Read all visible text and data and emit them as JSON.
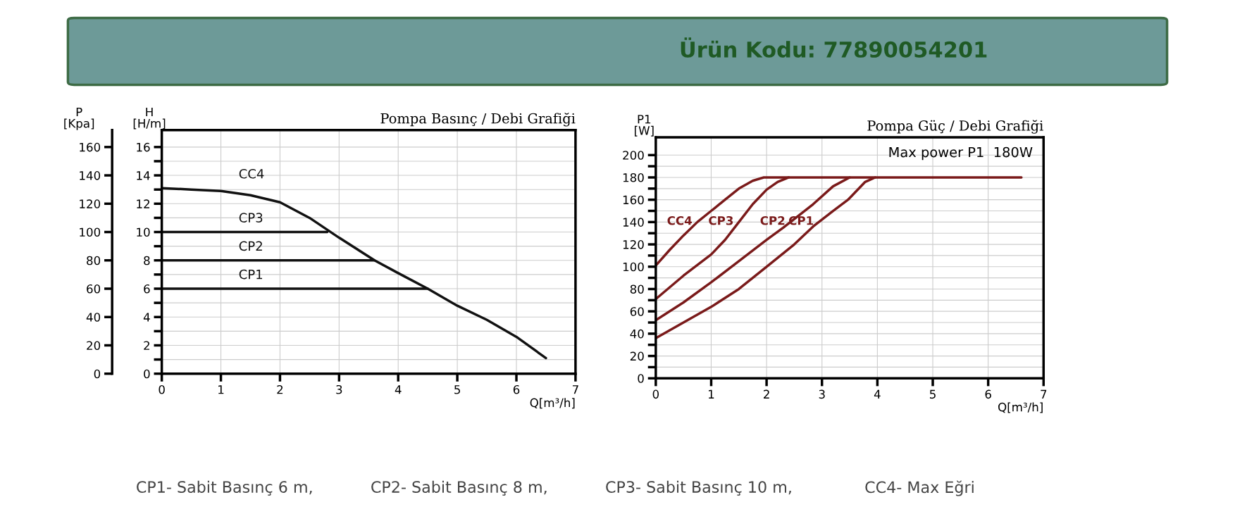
{
  "chart_data": [
    {
      "type": "line",
      "title": "Pompa Basınç / Debi Grafiği",
      "xlabel": "Q[m³/h]",
      "ylabel": "H\n[H/m]",
      "y2label": "P\n[Kpa]",
      "xlim": [
        0,
        7
      ],
      "xticks": [
        0,
        1,
        2,
        3,
        4,
        5,
        6,
        7
      ],
      "ylim": [
        0,
        17.2
      ],
      "yticks": [
        0,
        {
          "value": 1,
          "label": null
        },
        2,
        {
          "value": 3,
          "label": null
        },
        4,
        {
          "value": 5,
          "label": null
        },
        6,
        {
          "value": 7,
          "label": null
        },
        8,
        {
          "value": 9,
          "label": null
        },
        10,
        {
          "value": 11,
          "label": null
        },
        12,
        {
          "value": 13,
          "label": null
        },
        14,
        {
          "value": 15,
          "label": null
        },
        16
      ],
      "y2lim": [
        0,
        172
      ],
      "y2ticks": [
        0,
        20,
        40,
        60,
        80,
        100,
        120,
        140,
        160
      ],
      "grid": true,
      "marker": "none",
      "line_style": "solid",
      "series": [
        {
          "name": "CC4",
          "color": "#111111",
          "x": [
            0,
            0.5,
            1,
            1.5,
            2,
            2.5,
            3,
            3.6,
            4,
            4.5,
            5,
            5.5,
            6,
            6.5
          ],
          "values": [
            13.1,
            13.0,
            12.9,
            12.6,
            12.1,
            11.0,
            9.6,
            8.0,
            7.1,
            6.0,
            4.8,
            3.8,
            2.6,
            1.1
          ]
        },
        {
          "name": "CP3",
          "color": "#111111",
          "x": [
            0,
            2.8
          ],
          "values": [
            10,
            10
          ]
        },
        {
          "name": "CP2",
          "color": "#111111",
          "x": [
            0,
            3.6
          ],
          "values": [
            8,
            8
          ]
        },
        {
          "name": "CP1",
          "color": "#111111",
          "x": [
            0,
            4.5
          ],
          "values": [
            6,
            6
          ]
        }
      ]
    },
    {
      "type": "line",
      "title": "Pompa Güç / Debi Grafiği",
      "xlabel": "Q[m³/h]",
      "ylabel": "P1\n[W]",
      "xlim": [
        0,
        7
      ],
      "xticks": [
        0,
        1,
        2,
        3,
        4,
        5,
        6,
        7
      ],
      "ylim": [
        0,
        216
      ],
      "yticks": [
        0,
        {
          "value": 10,
          "label": null
        },
        20,
        {
          "value": 30,
          "label": null
        },
        40,
        {
          "value": 50,
          "label": null
        },
        60,
        {
          "value": 70,
          "label": null
        },
        80,
        {
          "value": 90,
          "label": null
        },
        100,
        {
          "value": 110,
          "label": null
        },
        120,
        {
          "value": 130,
          "label": null
        },
        140,
        {
          "value": 150,
          "label": null
        },
        160,
        {
          "value": 170,
          "label": null
        },
        180,
        {
          "value": 190,
          "label": null
        },
        200
      ],
      "grid": true,
      "marker": "none",
      "line_style": "solid",
      "annotations": [
        {
          "text": "Max power P1  180W",
          "x": 5.5,
          "y": 180
        }
      ],
      "series": [
        {
          "name": "CC4",
          "color": "#7a1a1a",
          "x": [
            0,
            0.25,
            0.5,
            0.75,
            1,
            1.25,
            1.5,
            1.75,
            1.95,
            6.6
          ],
          "values": [
            101,
            115,
            128,
            140,
            150,
            160,
            170,
            177,
            180,
            180
          ]
        },
        {
          "name": "CP3",
          "color": "#7a1a1a",
          "x": [
            0,
            0.5,
            1,
            1.25,
            1.5,
            1.75,
            2,
            2.2,
            2.4
          ],
          "values": [
            71,
            92,
            111,
            124,
            140,
            156,
            169,
            176,
            180
          ]
        },
        {
          "name": "CP2",
          "color": "#7a1a1a",
          "x": [
            0,
            0.5,
            1,
            1.5,
            2,
            2.3,
            2.84,
            3.2,
            3.5
          ],
          "values": [
            52,
            68,
            86,
            105,
            124,
            135,
            156,
            172,
            180
          ]
        },
        {
          "name": "CP1",
          "color": "#7a1a1a",
          "x": [
            0,
            0.5,
            1,
            1.5,
            2,
            2.5,
            2.84,
            3.2,
            3.47,
            3.78,
            3.96
          ],
          "values": [
            36,
            50,
            64,
            80,
            100,
            120,
            136,
            150,
            160,
            176,
            180
          ]
        }
      ]
    },
    {
      "type": "other",
      "annotations": [
        "Ürün Kodu: 77890054201",
        "CP1- Sabit Basınç 6 m,",
        "CP2- Sabit Basınç 8 m,",
        "CP3- Sabit Basınç 10 m,",
        "CC4- Max Eğri"
      ]
    }
  ]
}
